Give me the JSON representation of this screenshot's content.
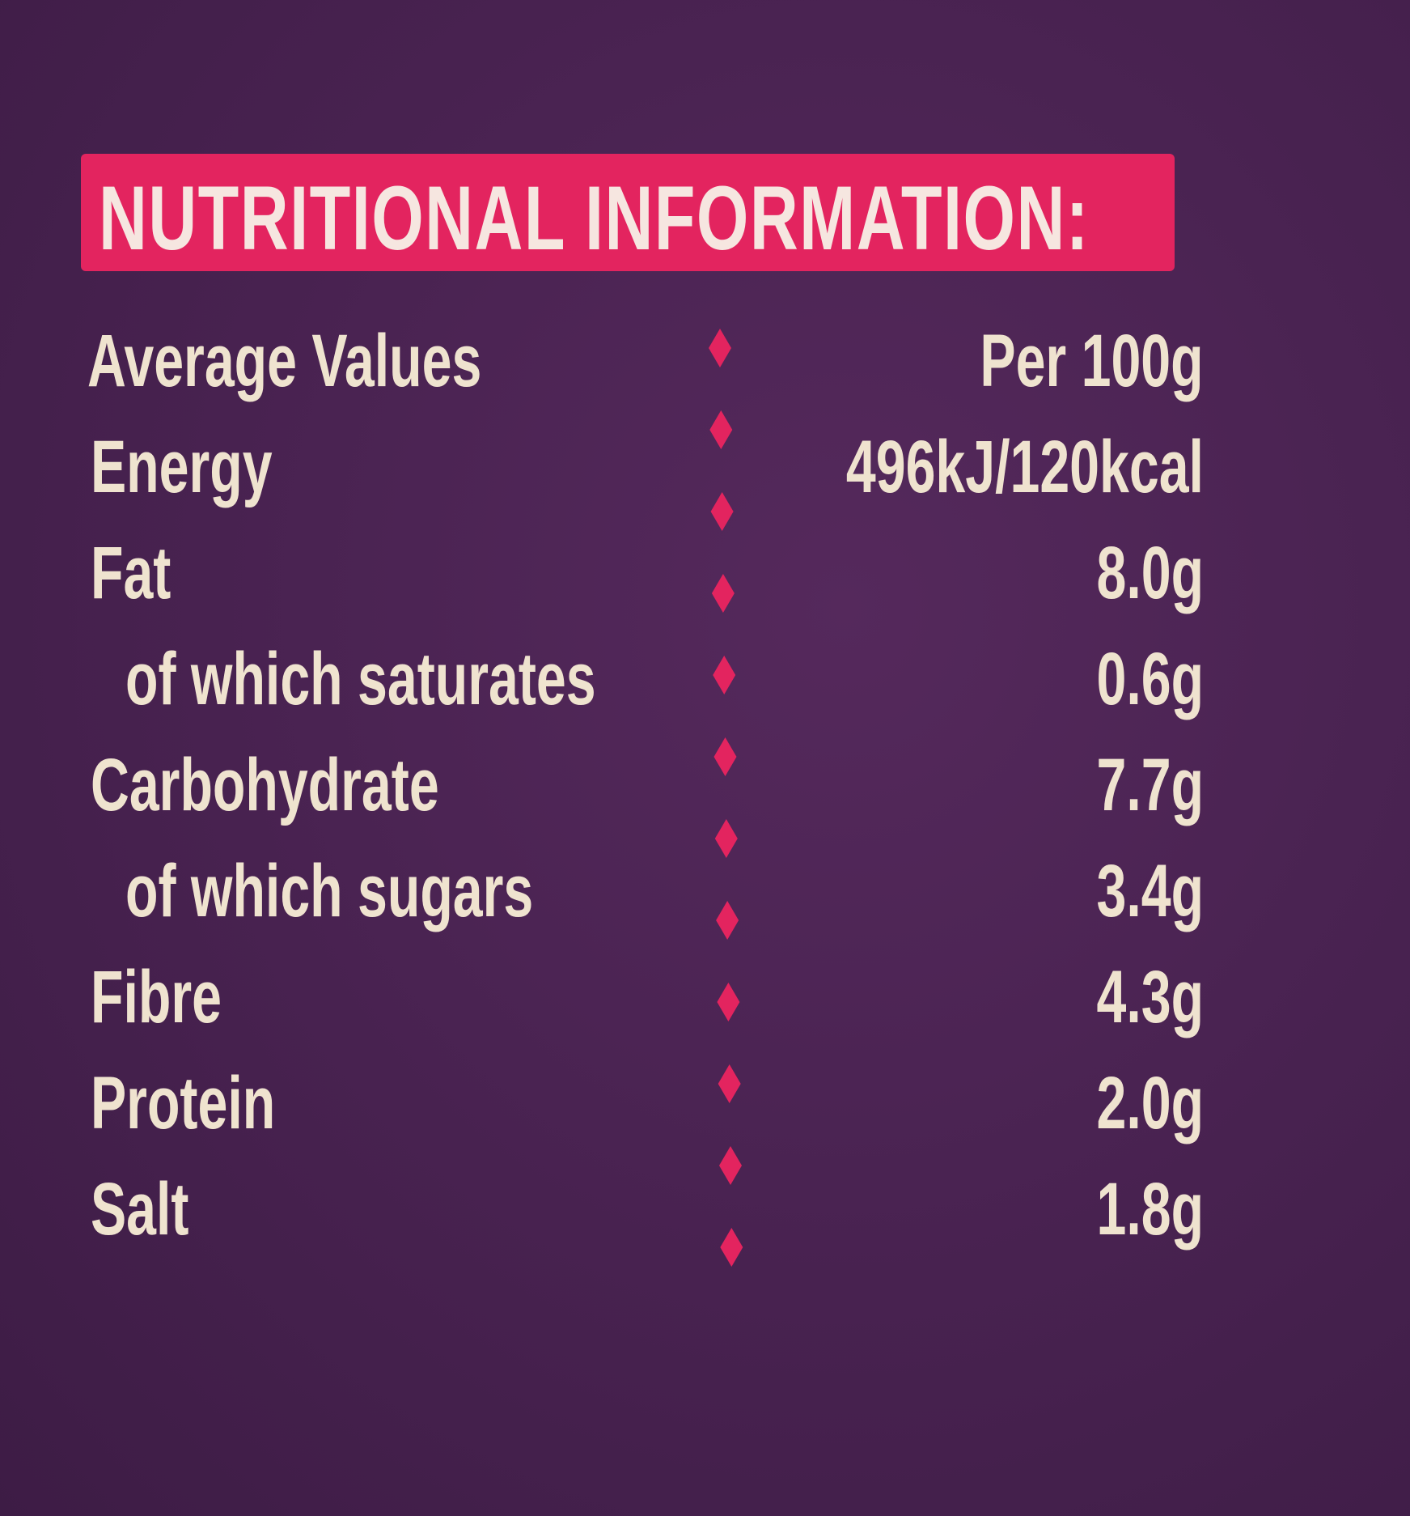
{
  "title": "NUTRITIONAL INFORMATION:",
  "table": {
    "header": [
      "Average Values",
      "Per 100g"
    ],
    "rows": [
      [
        "Energy",
        "496kJ/120kcal"
      ],
      [
        "Fat",
        "8.0g"
      ],
      [
        "of which saturates",
        "0.6g"
      ],
      [
        "Carbohydrate",
        "7.7g"
      ],
      [
        "of which sugars",
        "3.4g"
      ],
      [
        "Fibre",
        "4.3g"
      ],
      [
        "Protein",
        "2.0g"
      ],
      [
        "Salt",
        "1.8g"
      ]
    ]
  }
}
